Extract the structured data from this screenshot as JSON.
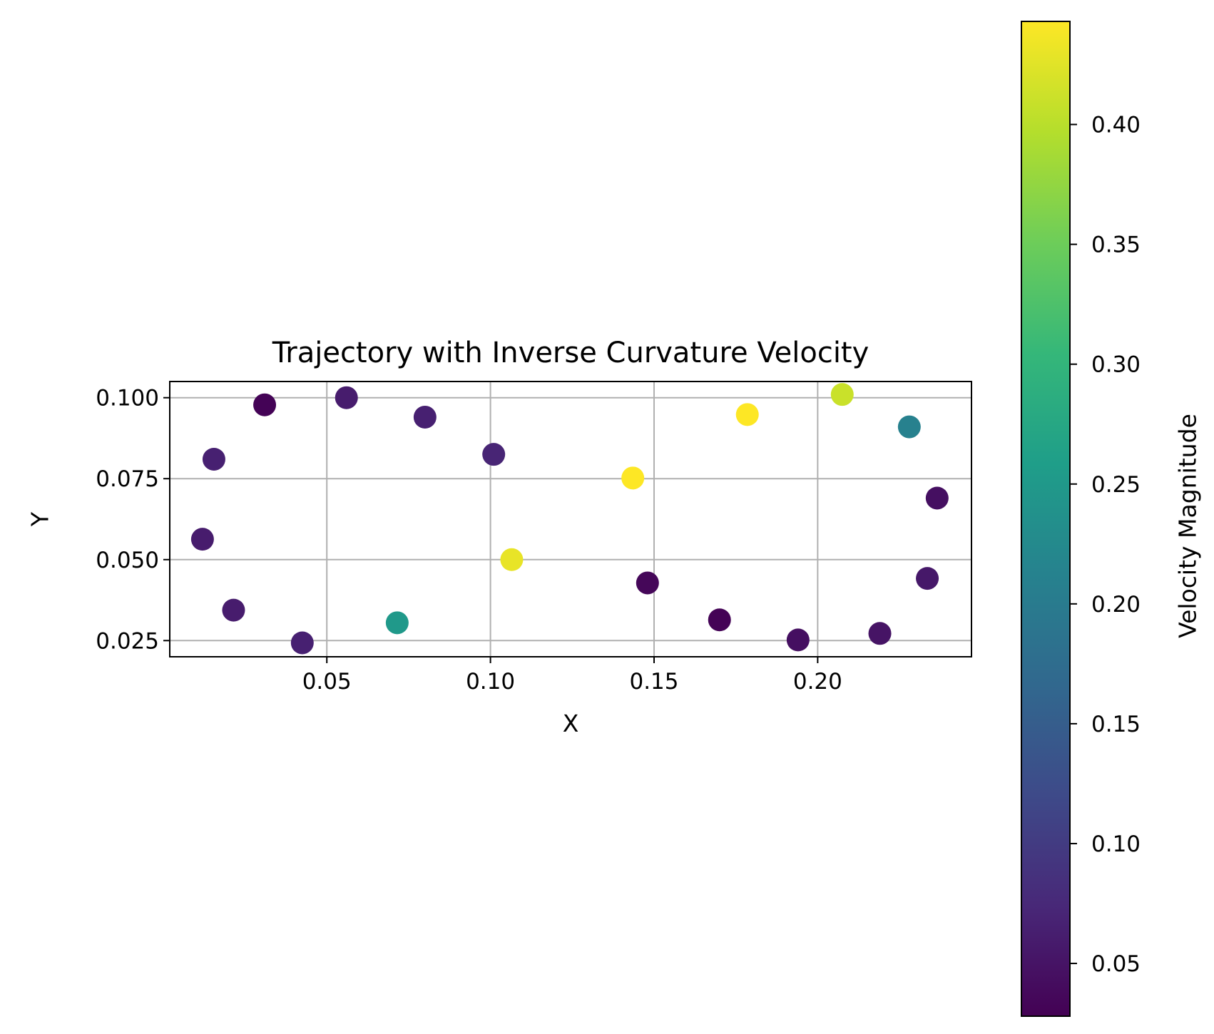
{
  "chart_data": {
    "type": "scatter",
    "title": "Trajectory with Inverse Curvature Velocity",
    "xlabel": "X",
    "ylabel": "Y",
    "xlim": [
      0.002,
      0.247
    ],
    "ylim": [
      0.02,
      0.105
    ],
    "xticks": [
      0.05,
      0.1,
      0.15,
      0.2
    ],
    "xtick_labels": [
      "0.05",
      "0.10",
      "0.15",
      "0.20"
    ],
    "yticks": [
      0.025,
      0.05,
      0.075,
      0.1
    ],
    "ytick_labels": [
      "0.025",
      "0.050",
      "0.075",
      "0.100"
    ],
    "grid": true,
    "colormap": "viridis",
    "colorbar": {
      "label": "Velocity Magnitude",
      "range": [
        0.028,
        0.443
      ],
      "ticks": [
        0.05,
        0.1,
        0.15,
        0.2,
        0.25,
        0.3,
        0.35,
        0.4
      ],
      "tick_labels": [
        "0.05",
        "0.10",
        "0.15",
        "0.20",
        "0.25",
        "0.30",
        "0.35",
        "0.40"
      ]
    },
    "points": [
      {
        "x": 0.031,
        "y": 0.0978,
        "c": 0.03
      },
      {
        "x": 0.056,
        "y": 0.1,
        "c": 0.06
      },
      {
        "x": 0.08,
        "y": 0.094,
        "c": 0.065
      },
      {
        "x": 0.101,
        "y": 0.0825,
        "c": 0.07
      },
      {
        "x": 0.0155,
        "y": 0.081,
        "c": 0.065
      },
      {
        "x": 0.012,
        "y": 0.0563,
        "c": 0.06
      },
      {
        "x": 0.0215,
        "y": 0.0344,
        "c": 0.06
      },
      {
        "x": 0.0425,
        "y": 0.0243,
        "c": 0.065
      },
      {
        "x": 0.0715,
        "y": 0.0305,
        "c": 0.25
      },
      {
        "x": 0.1065,
        "y": 0.05,
        "c": 0.43
      },
      {
        "x": 0.1435,
        "y": 0.0752,
        "c": 0.443
      },
      {
        "x": 0.148,
        "y": 0.0428,
        "c": 0.035
      },
      {
        "x": 0.17,
        "y": 0.0314,
        "c": 0.03
      },
      {
        "x": 0.1785,
        "y": 0.0948,
        "c": 0.443
      },
      {
        "x": 0.194,
        "y": 0.0252,
        "c": 0.045
      },
      {
        "x": 0.2075,
        "y": 0.101,
        "c": 0.41
      },
      {
        "x": 0.219,
        "y": 0.0272,
        "c": 0.05
      },
      {
        "x": 0.228,
        "y": 0.091,
        "c": 0.21
      },
      {
        "x": 0.2335,
        "y": 0.0442,
        "c": 0.055
      },
      {
        "x": 0.2365,
        "y": 0.069,
        "c": 0.045
      }
    ]
  }
}
